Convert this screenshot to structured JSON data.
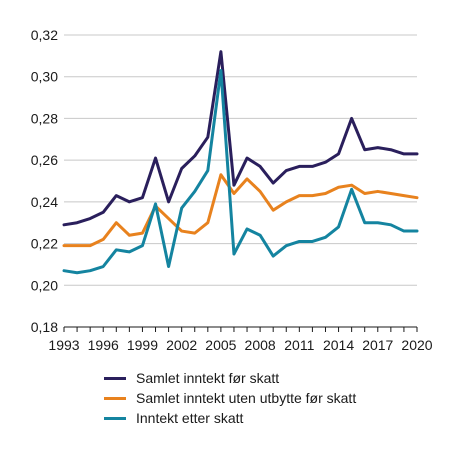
{
  "chart_data": {
    "type": "line",
    "title": "",
    "xlabel": "",
    "ylabel": "",
    "x": [
      1993,
      1994,
      1995,
      1996,
      1997,
      1998,
      1999,
      2000,
      2001,
      2002,
      2003,
      2004,
      2005,
      2006,
      2007,
      2008,
      2009,
      2010,
      2011,
      2012,
      2013,
      2014,
      2015,
      2016,
      2017,
      2018,
      2019,
      2020
    ],
    "xticks": [
      "1993",
      "1996",
      "1999",
      "2002",
      "2005",
      "2008",
      "2011",
      "2014",
      "2017",
      "2020"
    ],
    "yticks": [
      "0,18",
      "0,20",
      "0,22",
      "0,24",
      "0,26",
      "0,28",
      "0,30",
      "0,32"
    ],
    "ylim": [
      0.18,
      0.32
    ],
    "xlim": [
      1993,
      2020
    ],
    "grid": "horizontal",
    "legend_position": "bottom",
    "series": [
      {
        "name": "Samlet inntekt før skatt",
        "color": "#2a1f5c",
        "values": [
          0.229,
          0.23,
          0.232,
          0.235,
          0.243,
          0.24,
          0.242,
          0.261,
          0.24,
          0.256,
          0.262,
          0.271,
          0.312,
          0.248,
          0.261,
          0.257,
          0.249,
          0.255,
          0.257,
          0.257,
          0.259,
          0.263,
          0.28,
          0.265,
          0.266,
          0.265,
          0.263,
          0.263
        ]
      },
      {
        "name": "Samlet inntekt uten utbytte før skatt",
        "color": "#e8821e",
        "values": [
          0.219,
          0.219,
          0.219,
          0.222,
          0.23,
          0.224,
          0.225,
          0.238,
          0.232,
          0.226,
          0.225,
          0.23,
          0.253,
          0.244,
          0.251,
          0.245,
          0.236,
          0.24,
          0.243,
          0.243,
          0.244,
          0.247,
          0.248,
          0.244,
          0.245,
          0.244,
          0.243,
          0.242
        ]
      },
      {
        "name": "Inntekt etter skatt",
        "color": "#1484a0",
        "values": [
          0.207,
          0.206,
          0.207,
          0.209,
          0.217,
          0.216,
          0.219,
          0.239,
          0.209,
          0.237,
          0.245,
          0.255,
          0.303,
          0.215,
          0.227,
          0.224,
          0.214,
          0.219,
          0.221,
          0.221,
          0.223,
          0.228,
          0.246,
          0.23,
          0.23,
          0.229,
          0.226,
          0.226
        ]
      }
    ]
  }
}
